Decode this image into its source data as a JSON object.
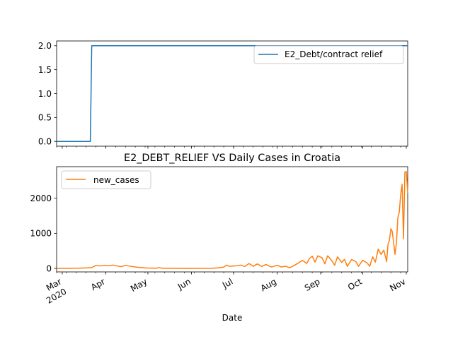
{
  "chart_data": [
    {
      "type": "line",
      "title": "",
      "xlabel": "",
      "ylabel": "",
      "ylim": [
        -0.1,
        2.1
      ],
      "yticks": [
        "0.0",
        "0.5",
        "1.0",
        "1.5",
        "2.0"
      ],
      "yticks_values": [
        0,
        0.5,
        1.0,
        1.5,
        2.0
      ],
      "legend": "top-right",
      "series": [
        {
          "name": "E2_Debt/contract relief",
          "color": "#1f77b4",
          "points": [
            [
              "2020-02-26",
              0
            ],
            [
              "2020-03-21",
              0
            ],
            [
              "2020-03-22",
              2
            ],
            [
              "2020-11-02",
              2
            ]
          ]
        }
      ]
    },
    {
      "type": "line",
      "title": "E2_DEBT_RELIEF VS Daily Cases in Croatia",
      "xlabel": "Date",
      "ylabel": "",
      "ylim": [
        -100,
        2900
      ],
      "yticks": [
        "0",
        "1000",
        "2000"
      ],
      "yticks_values": [
        0,
        1000,
        2000
      ],
      "xticks": [
        {
          "label": "Mar",
          "sub": "2020",
          "date": "2020-03-01"
        },
        {
          "label": "Apr",
          "sub": "",
          "date": "2020-04-01"
        },
        {
          "label": "May",
          "sub": "",
          "date": "2020-05-01"
        },
        {
          "label": "Jun",
          "sub": "",
          "date": "2020-06-01"
        },
        {
          "label": "Jul",
          "sub": "",
          "date": "2020-07-01"
        },
        {
          "label": "Aug",
          "sub": "",
          "date": "2020-08-01"
        },
        {
          "label": "Sep",
          "sub": "",
          "date": "2020-09-01"
        },
        {
          "label": "Oct",
          "sub": "",
          "date": "2020-10-01"
        },
        {
          "label": "Nov",
          "sub": "",
          "date": "2020-11-01"
        }
      ],
      "xlim": [
        "2020-02-26",
        "2020-11-02"
      ],
      "legend": "top-left",
      "series": [
        {
          "name": "new_cases",
          "color": "#ff7f0e",
          "points": [
            [
              "2020-02-26",
              0
            ],
            [
              "2020-03-05",
              2
            ],
            [
              "2020-03-12",
              5
            ],
            [
              "2020-03-19",
              15
            ],
            [
              "2020-03-22",
              25
            ],
            [
              "2020-03-25",
              85
            ],
            [
              "2020-03-28",
              70
            ],
            [
              "2020-03-31",
              90
            ],
            [
              "2020-04-03",
              75
            ],
            [
              "2020-04-06",
              95
            ],
            [
              "2020-04-09",
              70
            ],
            [
              "2020-04-12",
              50
            ],
            [
              "2020-04-15",
              85
            ],
            [
              "2020-04-18",
              65
            ],
            [
              "2020-04-21",
              45
            ],
            [
              "2020-04-24",
              30
            ],
            [
              "2020-04-27",
              20
            ],
            [
              "2020-04-30",
              10
            ],
            [
              "2020-05-04",
              8
            ],
            [
              "2020-05-07",
              5
            ],
            [
              "2020-05-09",
              25
            ],
            [
              "2020-05-11",
              5
            ],
            [
              "2020-05-20",
              2
            ],
            [
              "2020-06-01",
              1
            ],
            [
              "2020-06-15",
              3
            ],
            [
              "2020-06-20",
              15
            ],
            [
              "2020-06-24",
              35
            ],
            [
              "2020-06-26",
              95
            ],
            [
              "2020-06-28",
              60
            ],
            [
              "2020-07-02",
              70
            ],
            [
              "2020-07-06",
              95
            ],
            [
              "2020-07-09",
              55
            ],
            [
              "2020-07-12",
              140
            ],
            [
              "2020-07-15",
              60
            ],
            [
              "2020-07-18",
              130
            ],
            [
              "2020-07-21",
              55
            ],
            [
              "2020-07-24",
              110
            ],
            [
              "2020-07-28",
              40
            ],
            [
              "2020-08-01",
              90
            ],
            [
              "2020-08-04",
              40
            ],
            [
              "2020-08-07",
              60
            ],
            [
              "2020-08-10",
              20
            ],
            [
              "2020-08-13",
              80
            ],
            [
              "2020-08-16",
              150
            ],
            [
              "2020-08-19",
              230
            ],
            [
              "2020-08-22",
              140
            ],
            [
              "2020-08-24",
              280
            ],
            [
              "2020-08-26",
              350
            ],
            [
              "2020-08-28",
              180
            ],
            [
              "2020-08-30",
              360
            ],
            [
              "2020-09-02",
              300
            ],
            [
              "2020-09-04",
              130
            ],
            [
              "2020-09-06",
              360
            ],
            [
              "2020-09-09",
              220
            ],
            [
              "2020-09-11",
              90
            ],
            [
              "2020-09-13",
              330
            ],
            [
              "2020-09-16",
              170
            ],
            [
              "2020-09-18",
              260
            ],
            [
              "2020-09-20",
              60
            ],
            [
              "2020-09-23",
              250
            ],
            [
              "2020-09-26",
              200
            ],
            [
              "2020-09-28",
              60
            ],
            [
              "2020-10-01",
              230
            ],
            [
              "2020-10-04",
              160
            ],
            [
              "2020-10-06",
              60
            ],
            [
              "2020-10-08",
              330
            ],
            [
              "2020-10-10",
              180
            ],
            [
              "2020-10-12",
              550
            ],
            [
              "2020-10-14",
              400
            ],
            [
              "2020-10-16",
              520
            ],
            [
              "2020-10-18",
              190
            ],
            [
              "2020-10-19",
              700
            ],
            [
              "2020-10-20",
              800
            ],
            [
              "2020-10-21",
              1130
            ],
            [
              "2020-10-22",
              1050
            ],
            [
              "2020-10-24",
              400
            ],
            [
              "2020-10-25",
              750
            ],
            [
              "2020-10-26",
              1450
            ],
            [
              "2020-10-27",
              1600
            ],
            [
              "2020-10-28",
              2100
            ],
            [
              "2020-10-29",
              2400
            ],
            [
              "2020-10-30",
              840
            ],
            [
              "2020-10-31",
              2750
            ],
            [
              "2020-11-01",
              2760
            ],
            [
              "2020-11-02",
              2150
            ]
          ]
        }
      ]
    }
  ]
}
